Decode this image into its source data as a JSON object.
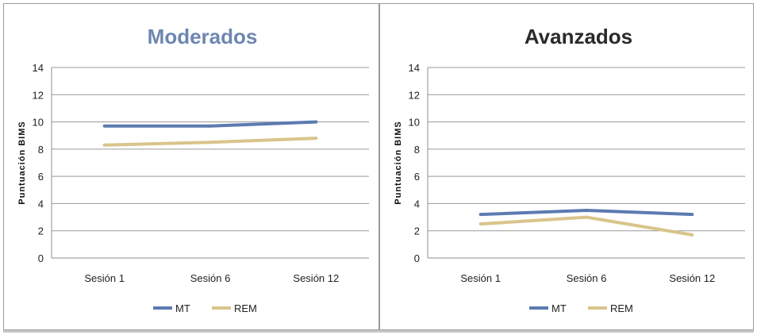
{
  "chart_data": [
    {
      "type": "line",
      "title": "Moderados",
      "title_color": "#6d86b2",
      "ylabel": "Puntuación BIMS",
      "xlabel": "",
      "ylim": [
        0,
        14
      ],
      "yticks": [
        0,
        2,
        4,
        6,
        8,
        10,
        12,
        14
      ],
      "grid": true,
      "legend_position": "bottom",
      "categories": [
        "Sesión 1",
        "Sesión 6",
        "Sesión 12"
      ],
      "series": [
        {
          "name": "MT",
          "color": "#5b7bb0",
          "values": [
            9.7,
            9.7,
            10.0
          ]
        },
        {
          "name": "REM",
          "color": "#d9c48c",
          "values": [
            8.3,
            8.5,
            8.8
          ]
        }
      ]
    },
    {
      "type": "line",
      "title": "Avanzados",
      "title_color": "#2a2a2a",
      "ylabel": "Puntuación BIMS",
      "xlabel": "",
      "ylim": [
        0,
        14
      ],
      "yticks": [
        0,
        2,
        4,
        6,
        8,
        10,
        12,
        14
      ],
      "grid": true,
      "legend_position": "bottom",
      "categories": [
        "Sesión 1",
        "Sesión 6",
        "Sesión 12"
      ],
      "series": [
        {
          "name": "MT",
          "color": "#5b7bb0",
          "values": [
            3.2,
            3.5,
            3.2
          ]
        },
        {
          "name": "REM",
          "color": "#d9c48c",
          "values": [
            2.5,
            3.0,
            1.7
          ]
        }
      ]
    }
  ]
}
